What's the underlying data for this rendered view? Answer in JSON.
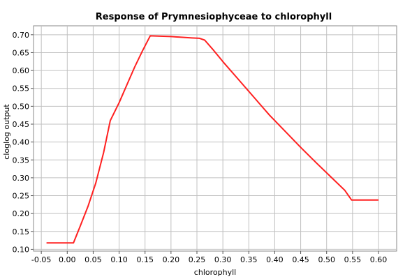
{
  "chart_data": {
    "type": "line",
    "title": "Response of Prymnesiophyceae to chlorophyll",
    "xlabel": "chlorophyll",
    "ylabel": "cloglog output",
    "xlim": [
      -0.065,
      0.635
    ],
    "ylim": [
      0.095,
      0.725
    ],
    "x_ticks": [
      "-0.05",
      "0.00",
      "0.05",
      "0.10",
      "0.15",
      "0.20",
      "0.25",
      "0.30",
      "0.35",
      "0.40",
      "0.45",
      "0.50",
      "0.55",
      "0.60"
    ],
    "y_ticks": [
      "0.10",
      "0.15",
      "0.20",
      "0.25",
      "0.30",
      "0.35",
      "0.40",
      "0.45",
      "0.50",
      "0.55",
      "0.60",
      "0.65",
      "0.70"
    ],
    "grid": true,
    "series": [
      {
        "color": "#ff2020",
        "x": [
          -0.04,
          0.012,
          0.025,
          0.04,
          0.055,
          0.07,
          0.083,
          0.1,
          0.115,
          0.13,
          0.145,
          0.16,
          0.18,
          0.2,
          0.22,
          0.24,
          0.255,
          0.265,
          0.28,
          0.3,
          0.33,
          0.36,
          0.39,
          0.42,
          0.45,
          0.48,
          0.51,
          0.535,
          0.548,
          0.6
        ],
        "y": [
          0.118,
          0.118,
          0.165,
          0.22,
          0.285,
          0.37,
          0.46,
          0.51,
          0.56,
          0.61,
          0.655,
          0.697,
          0.696,
          0.695,
          0.693,
          0.691,
          0.69,
          0.685,
          0.66,
          0.625,
          0.575,
          0.525,
          0.475,
          0.43,
          0.385,
          0.342,
          0.3,
          0.265,
          0.238,
          0.238
        ]
      }
    ]
  }
}
